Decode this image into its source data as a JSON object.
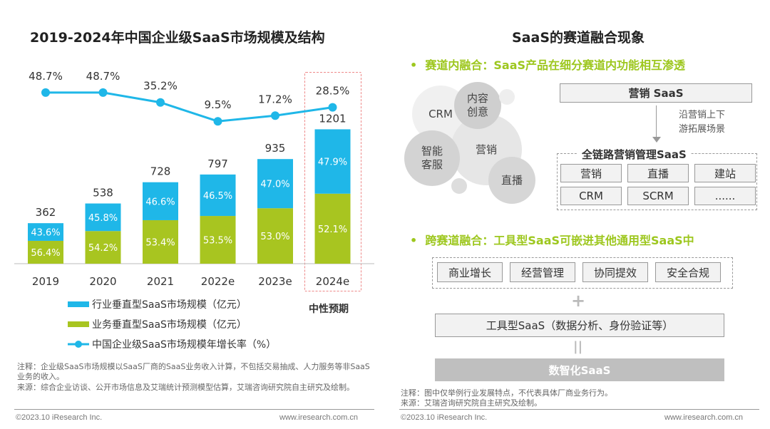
{
  "left": {
    "title": "2019-2024年中国企业级SaaS市场规模及结构",
    "forecast_label": "中性预期",
    "note": "注释：企业级SaaS市场规模以SaaS厂商的SaaS业务收入计算，不包括交易抽成、人力服务等非SaaS业务的收入。",
    "source": "来源：综合企业访谈、公开市场信息及艾瑞统计预测模型估算，艾瑞咨询研究院自主研究及绘制。",
    "copyright": "©2023.10 iResearch Inc.",
    "website": "www.iresearch.com.cn"
  },
  "chart_data": {
    "type": "bar",
    "title": "2019-2024年中国企业级SaaS市场规模及结构",
    "stacked": true,
    "categories": [
      "2019",
      "2020",
      "2021",
      "2022e",
      "2023e",
      "2024e"
    ],
    "totals": [
      362,
      538,
      728,
      797,
      935,
      1201
    ],
    "total_labels": [
      "362",
      "538",
      "728",
      "797",
      "935",
      "1201"
    ],
    "series": [
      {
        "name": "行业垂直型SaaS市场规模（亿元）",
        "type": "bar",
        "color": "#1fb7e8",
        "share_labels": [
          "43.6%",
          "45.8%",
          "46.6%",
          "46.5%",
          "47.0%",
          "47.9%"
        ]
      },
      {
        "name": "业务垂直型SaaS市场规模（亿元）",
        "type": "bar",
        "color": "#a8c520",
        "share_labels": [
          "56.4%",
          "54.2%",
          "53.4%",
          "53.5%",
          "53.0%",
          "52.1%"
        ]
      },
      {
        "name": "中国企业级SaaS市场规模年增长率（%）",
        "type": "line",
        "color": "#1fb7e8",
        "values": [
          48.7,
          48.7,
          35.2,
          9.5,
          17.2,
          28.5
        ],
        "labels": [
          "48.7%",
          "48.7%",
          "35.2%",
          "9.5%",
          "17.2%",
          "28.5%"
        ]
      }
    ],
    "highlight_category": "2024e",
    "legend_position": "bottom",
    "grid": false
  },
  "right": {
    "title": "SaaS的赛道融合现象",
    "section1": "赛道内融合：SaaS产品在细分赛道内功能相互渗透",
    "circles": [
      "内容创意",
      "CRM",
      "营销",
      "智能客服",
      "直播"
    ],
    "top_box": "营销 SaaS",
    "arrow_label": [
      "沿营销上下",
      "游拓展场景"
    ],
    "group_title": "全链路营销管理SaaS",
    "group_items": [
      "营销",
      "直播",
      "建站",
      "CRM",
      "SCRM",
      "......"
    ],
    "section2": "跨赛道融合：工具型SaaS可嵌进其他通用型SaaS中",
    "general_items": [
      "商业增长",
      "经营管理",
      "协同提效",
      "安全合规"
    ],
    "plus": "+",
    "tool_box": "工具型SaaS（数据分析、身份验证等）",
    "equals": "||",
    "digital_box": "数智化SaaS",
    "note": "注释：图中仅举例行业发展特点，不代表具体厂商业务行为。",
    "source": "来源：艾瑞咨询研究院自主研究及绘制。",
    "copyright": "©2023.10 iResearch Inc.",
    "website": "www.iresearch.com.cn"
  }
}
